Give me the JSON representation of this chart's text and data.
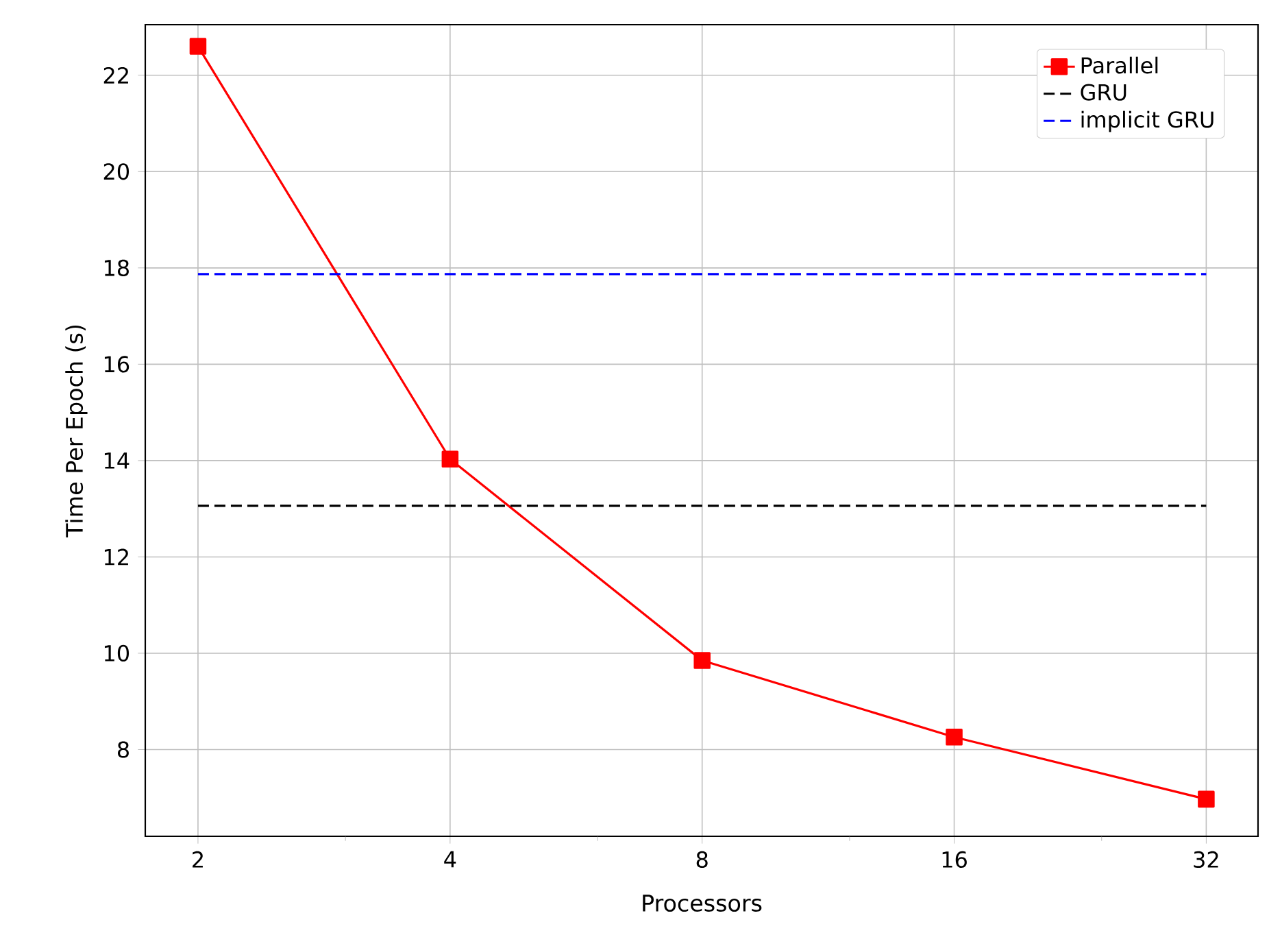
{
  "chart_data": {
    "type": "line",
    "xlabel": "Processors",
    "ylabel": "Time Per Epoch (s)",
    "log": "x",
    "x": [
      2,
      4,
      8,
      16,
      32
    ],
    "series": [
      {
        "name": "Parallel",
        "color": "#ff0000",
        "values": [
          22.6,
          14.03,
          9.85,
          8.26,
          6.97
        ],
        "marker": "square",
        "line_style": "solid"
      },
      {
        "name": "GRU",
        "color": "#000000",
        "values": [
          13.06,
          13.06,
          13.06,
          13.06,
          13.06
        ],
        "marker": "none",
        "line_style": "dashed"
      },
      {
        "name": "implicit GRU",
        "color": "#0000ff",
        "values": [
          17.87,
          17.87,
          17.87,
          17.87,
          17.87
        ],
        "marker": "none",
        "line_style": "dashed"
      }
    ],
    "xlim": [
      1.73,
      36.9
    ],
    "ylim": [
      6.2,
      23.05
    ],
    "xticks": [
      2,
      4,
      8,
      16,
      32,
      {
        "value": 3,
        "label": null
      },
      {
        "value": 6,
        "label": null
      },
      {
        "value": 12,
        "label": null
      },
      {
        "value": 24,
        "label": null
      }
    ],
    "yticks": [
      8,
      10,
      12,
      14,
      16,
      18,
      20,
      22
    ],
    "grid": true,
    "legend": "top right"
  }
}
